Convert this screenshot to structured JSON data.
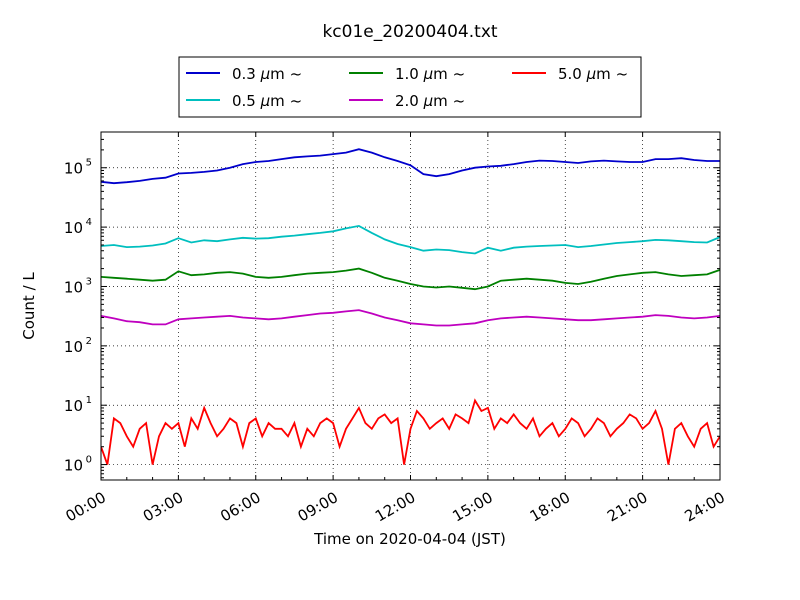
{
  "chart_data": {
    "type": "line",
    "title": "kc01e_20200404.txt",
    "xlabel": "Time on 2020-04-04 (JST)",
    "ylabel": "Count / L",
    "yscale": "log",
    "ylim": [
      0.55,
      400000
    ],
    "xlim": [
      "00:00",
      "24:00"
    ],
    "x_ticks": [
      "00:00",
      "03:00",
      "06:00",
      "09:00",
      "12:00",
      "15:00",
      "18:00",
      "21:00",
      "24:00"
    ],
    "y_ticks": [
      {
        "value": 1,
        "label_base": "10",
        "label_exp": "0"
      },
      {
        "value": 10,
        "label_base": "10",
        "label_exp": "1"
      },
      {
        "value": 100,
        "label_base": "10",
        "label_exp": "2"
      },
      {
        "value": 1000,
        "label_base": "10",
        "label_exp": "3"
      },
      {
        "value": 10000,
        "label_base": "10",
        "label_exp": "4"
      },
      {
        "value": 100000,
        "label_base": "10",
        "label_exp": "5"
      }
    ],
    "grid": true,
    "legend_position": "top",
    "series": [
      {
        "name": "0.3 µm ~",
        "name_size": "0.3",
        "name_unit": "µm",
        "name_suffix": "~",
        "color": "#0000cc",
        "x": [
          "00:00",
          "00:30",
          "01:00",
          "01:30",
          "02:00",
          "02:30",
          "03:00",
          "03:30",
          "04:00",
          "04:30",
          "05:00",
          "05:30",
          "06:00",
          "06:30",
          "07:00",
          "07:30",
          "08:00",
          "08:30",
          "09:00",
          "09:30",
          "10:00",
          "10:30",
          "11:00",
          "11:30",
          "12:00",
          "12:30",
          "13:00",
          "13:30",
          "14:00",
          "14:30",
          "15:00",
          "15:30",
          "16:00",
          "16:30",
          "17:00",
          "17:30",
          "18:00",
          "18:30",
          "19:00",
          "19:30",
          "20:00",
          "20:30",
          "21:00",
          "21:30",
          "22:00",
          "22:30",
          "23:00",
          "23:30",
          "24:00"
        ],
        "y": [
          58000,
          55000,
          57000,
          60000,
          65000,
          68000,
          80000,
          82000,
          85000,
          90000,
          100000,
          115000,
          125000,
          130000,
          140000,
          150000,
          155000,
          160000,
          170000,
          180000,
          205000,
          180000,
          150000,
          130000,
          110000,
          78000,
          72000,
          78000,
          90000,
          100000,
          105000,
          108000,
          115000,
          125000,
          132000,
          130000,
          125000,
          120000,
          128000,
          132000,
          128000,
          125000,
          125000,
          140000,
          140000,
          145000,
          135000,
          130000,
          130000
        ]
      },
      {
        "name": "0.5 µm ~",
        "name_size": "0.5",
        "name_unit": "µm",
        "name_suffix": "~",
        "color": "#00bfbf",
        "x": [
          "00:00",
          "00:30",
          "01:00",
          "01:30",
          "02:00",
          "02:30",
          "03:00",
          "03:30",
          "04:00",
          "04:30",
          "05:00",
          "05:30",
          "06:00",
          "06:30",
          "07:00",
          "07:30",
          "08:00",
          "08:30",
          "09:00",
          "09:30",
          "10:00",
          "10:30",
          "11:00",
          "11:30",
          "12:00",
          "12:30",
          "13:00",
          "13:30",
          "14:00",
          "14:30",
          "15:00",
          "15:30",
          "16:00",
          "16:30",
          "17:00",
          "17:30",
          "18:00",
          "18:30",
          "19:00",
          "19:30",
          "20:00",
          "20:30",
          "21:00",
          "21:30",
          "22:00",
          "22:30",
          "23:00",
          "23:30",
          "24:00"
        ],
        "y": [
          4800,
          5000,
          4600,
          4700,
          4900,
          5300,
          6500,
          5500,
          6000,
          5800,
          6200,
          6600,
          6400,
          6500,
          6900,
          7200,
          7600,
          8000,
          8500,
          9500,
          10500,
          8000,
          6200,
          5200,
          4600,
          4000,
          4200,
          4100,
          3800,
          3600,
          4500,
          4000,
          4500,
          4700,
          4800,
          4900,
          5000,
          4600,
          4800,
          5100,
          5400,
          5600,
          5800,
          6100,
          6000,
          5800,
          5600,
          5500,
          6800
        ]
      },
      {
        "name": "1.0 µm ~",
        "name_size": "1.0",
        "name_unit": "µm",
        "name_suffix": "~",
        "color": "#008000",
        "x": [
          "00:00",
          "00:30",
          "01:00",
          "01:30",
          "02:00",
          "02:30",
          "03:00",
          "03:30",
          "04:00",
          "04:30",
          "05:00",
          "05:30",
          "06:00",
          "06:30",
          "07:00",
          "07:30",
          "08:00",
          "08:30",
          "09:00",
          "09:30",
          "10:00",
          "10:30",
          "11:00",
          "11:30",
          "12:00",
          "12:30",
          "13:00",
          "13:30",
          "14:00",
          "14:30",
          "15:00",
          "15:30",
          "16:00",
          "16:30",
          "17:00",
          "17:30",
          "18:00",
          "18:30",
          "19:00",
          "19:30",
          "20:00",
          "20:30",
          "21:00",
          "21:30",
          "22:00",
          "22:30",
          "23:00",
          "23:30",
          "24:00"
        ],
        "y": [
          1450,
          1400,
          1350,
          1300,
          1250,
          1300,
          1800,
          1550,
          1600,
          1700,
          1750,
          1650,
          1450,
          1400,
          1450,
          1550,
          1650,
          1700,
          1750,
          1850,
          2000,
          1700,
          1400,
          1250,
          1100,
          1000,
          960,
          1000,
          950,
          900,
          1000,
          1250,
          1300,
          1350,
          1300,
          1250,
          1150,
          1100,
          1200,
          1350,
          1500,
          1600,
          1700,
          1750,
          1600,
          1500,
          1550,
          1600,
          1900
        ]
      },
      {
        "name": "2.0 µm ~",
        "name_size": "2.0",
        "name_unit": "µm",
        "name_suffix": "~",
        "color": "#bf00bf",
        "x": [
          "00:00",
          "00:30",
          "01:00",
          "01:30",
          "02:00",
          "02:30",
          "03:00",
          "03:30",
          "04:00",
          "04:30",
          "05:00",
          "05:30",
          "06:00",
          "06:30",
          "07:00",
          "07:30",
          "08:00",
          "08:30",
          "09:00",
          "09:30",
          "10:00",
          "10:30",
          "11:00",
          "11:30",
          "12:00",
          "12:30",
          "13:00",
          "13:30",
          "14:00",
          "14:30",
          "15:00",
          "15:30",
          "16:00",
          "16:30",
          "17:00",
          "17:30",
          "18:00",
          "18:30",
          "19:00",
          "19:30",
          "20:00",
          "20:30",
          "21:00",
          "21:30",
          "22:00",
          "22:30",
          "23:00",
          "23:30",
          "24:00"
        ],
        "y": [
          320,
          290,
          260,
          250,
          230,
          230,
          280,
          290,
          300,
          310,
          320,
          300,
          290,
          280,
          290,
          310,
          330,
          350,
          360,
          380,
          400,
          350,
          300,
          270,
          240,
          230,
          220,
          220,
          230,
          240,
          270,
          290,
          300,
          310,
          300,
          290,
          280,
          270,
          270,
          280,
          290,
          300,
          310,
          330,
          320,
          300,
          290,
          300,
          320
        ]
      },
      {
        "name": "5.0 µm ~",
        "name_size": "5.0",
        "name_unit": "µm",
        "name_suffix": "~",
        "color": "#ff0000",
        "x": [
          "00:00",
          "00:15",
          "00:30",
          "00:45",
          "01:00",
          "01:15",
          "01:30",
          "01:45",
          "02:00",
          "02:15",
          "02:30",
          "02:45",
          "03:00",
          "03:15",
          "03:30",
          "03:45",
          "04:00",
          "04:15",
          "04:30",
          "04:45",
          "05:00",
          "05:15",
          "05:30",
          "05:45",
          "06:00",
          "06:15",
          "06:30",
          "06:45",
          "07:00",
          "07:15",
          "07:30",
          "07:45",
          "08:00",
          "08:15",
          "08:30",
          "08:45",
          "09:00",
          "09:15",
          "09:30",
          "09:45",
          "10:00",
          "10:15",
          "10:30",
          "10:45",
          "11:00",
          "11:15",
          "11:30",
          "11:45",
          "12:00",
          "12:15",
          "12:30",
          "12:45",
          "13:00",
          "13:15",
          "13:30",
          "13:45",
          "14:00",
          "14:15",
          "14:30",
          "14:45",
          "15:00",
          "15:15",
          "15:30",
          "15:45",
          "16:00",
          "16:15",
          "16:30",
          "16:45",
          "17:00",
          "17:15",
          "17:30",
          "17:45",
          "18:00",
          "18:15",
          "18:30",
          "18:45",
          "19:00",
          "19:15",
          "19:30",
          "19:45",
          "20:00",
          "20:15",
          "20:30",
          "20:45",
          "21:00",
          "21:15",
          "21:30",
          "21:45",
          "22:00",
          "22:15",
          "22:30",
          "22:45",
          "23:00",
          "23:15",
          "23:30",
          "23:45",
          "24:00"
        ],
        "y": [
          2,
          1,
          6,
          5,
          3,
          2,
          4,
          5,
          1,
          3,
          5,
          4,
          5,
          2,
          6,
          4,
          9,
          5,
          3,
          4,
          6,
          5,
          2,
          5,
          6,
          3,
          5,
          4,
          4,
          3,
          5,
          2,
          4,
          3,
          5,
          6,
          5,
          2,
          4,
          6,
          9,
          5,
          4,
          6,
          7,
          5,
          6,
          1,
          4,
          8,
          6,
          4,
          5,
          6,
          4,
          7,
          6,
          5,
          12,
          8,
          9,
          4,
          6,
          5,
          7,
          5,
          4,
          6,
          3,
          4,
          5,
          3,
          4,
          6,
          5,
          3,
          4,
          6,
          5,
          3,
          4,
          5,
          7,
          6,
          4,
          5,
          8,
          4,
          1,
          4,
          5,
          3,
          2,
          4,
          5,
          2,
          3
        ]
      }
    ]
  }
}
